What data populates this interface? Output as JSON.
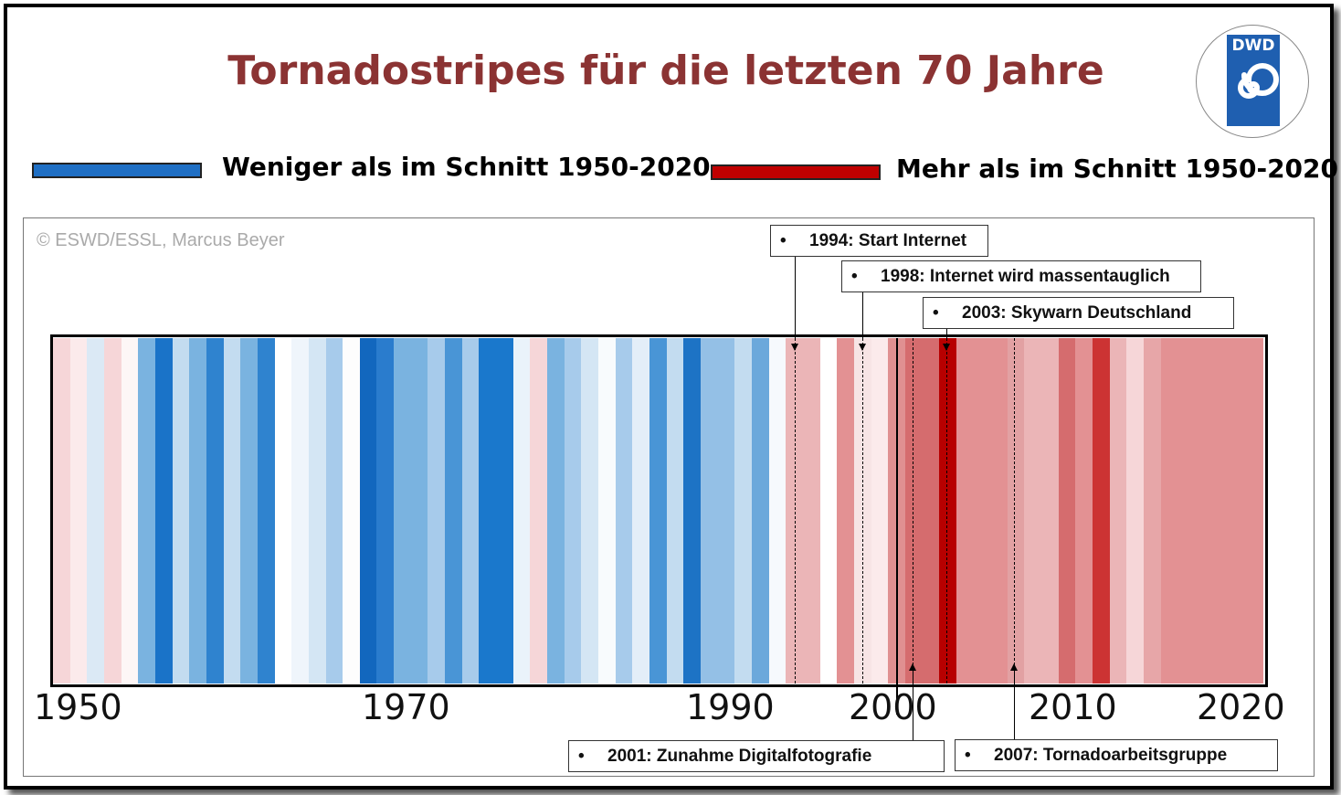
{
  "title": "Tornadostripes für die letzten 70 Jahre",
  "logo": {
    "text": "DWD",
    "icon": "dwd-swirl-icon",
    "color": "#1f5fb0"
  },
  "legend": [
    {
      "label": "Weniger als im Schnitt 1950-2020",
      "color": "#1f6fc4"
    },
    {
      "label": "Mehr als im Schnitt 1950-2020",
      "color": "#c00000"
    }
  ],
  "copyright": "© ESWD/ESSL, Marcus Beyer",
  "events": [
    {
      "label": "1994: Start Internet",
      "year": 1994
    },
    {
      "label": "1998: Internet wird massentauglich",
      "year": 1998
    },
    {
      "label": "2003: Skywarn Deutschland",
      "year": 2003
    },
    {
      "label": "2001: Zunahme Digitalfotografie",
      "year": 2001
    },
    {
      "label": "2007: Tornadoarbeitsgruppe",
      "year": 2007
    }
  ],
  "chart_data": {
    "type": "heatmap",
    "title": "Tornadostripes für die letzten 70 Jahre",
    "x_tick_labels": [
      "1950",
      "1970",
      "1990",
      "2000",
      "2010",
      "2020"
    ],
    "years": [
      1950,
      1951,
      1952,
      1953,
      1954,
      1955,
      1956,
      1957,
      1958,
      1959,
      1960,
      1961,
      1962,
      1963,
      1964,
      1965,
      1966,
      1967,
      1968,
      1969,
      1970,
      1971,
      1972,
      1973,
      1974,
      1975,
      1976,
      1977,
      1978,
      1979,
      1980,
      1981,
      1982,
      1983,
      1984,
      1985,
      1986,
      1987,
      1988,
      1989,
      1990,
      1991,
      1992,
      1993,
      1994,
      1995,
      1996,
      1997,
      1998,
      1999,
      2000,
      2001,
      2002,
      2003,
      2004,
      2005,
      2006,
      2007,
      2008,
      2009,
      2010,
      2011,
      2012,
      2013,
      2014,
      2015,
      2016,
      2017,
      2018,
      2019,
      2020
    ],
    "stripe_colors": [
      "#f6d6d8",
      "#fbeaeb",
      "#dbe9f5",
      "#f6d6d8",
      "#fdf6f6",
      "#7ab3e0",
      "#1a73c8",
      "#c3dcf0",
      "#7ab3e0",
      "#2f83cf",
      "#c3dcf0",
      "#7ab3e0",
      "#2f83cf",
      "#ffffff",
      "#eff5fb",
      "#d4e6f4",
      "#a7cbeb",
      "#fdfdfd",
      "#1267be",
      "#2a7ccd",
      "#7ab3e0",
      "#7ab3e0",
      "#a7cbeb",
      "#4995d6",
      "#a7cbeb",
      "#1a78cc",
      "#1a78cc",
      "#eaf3fa",
      "#f6d6d8",
      "#7ab3e0",
      "#a7cbeb",
      "#d4e6f4",
      "#f8fbfd",
      "#a7cbeb",
      "#e3eef8",
      "#4995d6",
      "#c3dcf0",
      "#1d73c5",
      "#94c0e6",
      "#94c0e6",
      "#c3dcf0",
      "#6ba8db",
      "#f6f9fd",
      "#ebb5b7",
      "#ebb5b7",
      "#ffffff",
      "#e39193",
      "#f7e4e5",
      "#fbeaeb",
      "#e09091",
      "#d56c6e",
      "#d56c6e",
      "#b70000",
      "#e39193",
      "#e39193",
      "#e39193",
      "#e2a1a3",
      "#ebb5b7",
      "#ebb5b7",
      "#d56c6e",
      "#e39193",
      "#cc3333",
      "#ebb5b7",
      "#f6d6d8",
      "#e7a6a8",
      "#e39193",
      "#e39193",
      "#e39193",
      "#e39193",
      "#e39193",
      "#e39193"
    ],
    "legend": [
      "Weniger als im Schnitt 1950-2020",
      "Mehr als im Schnitt 1950-2020"
    ]
  }
}
